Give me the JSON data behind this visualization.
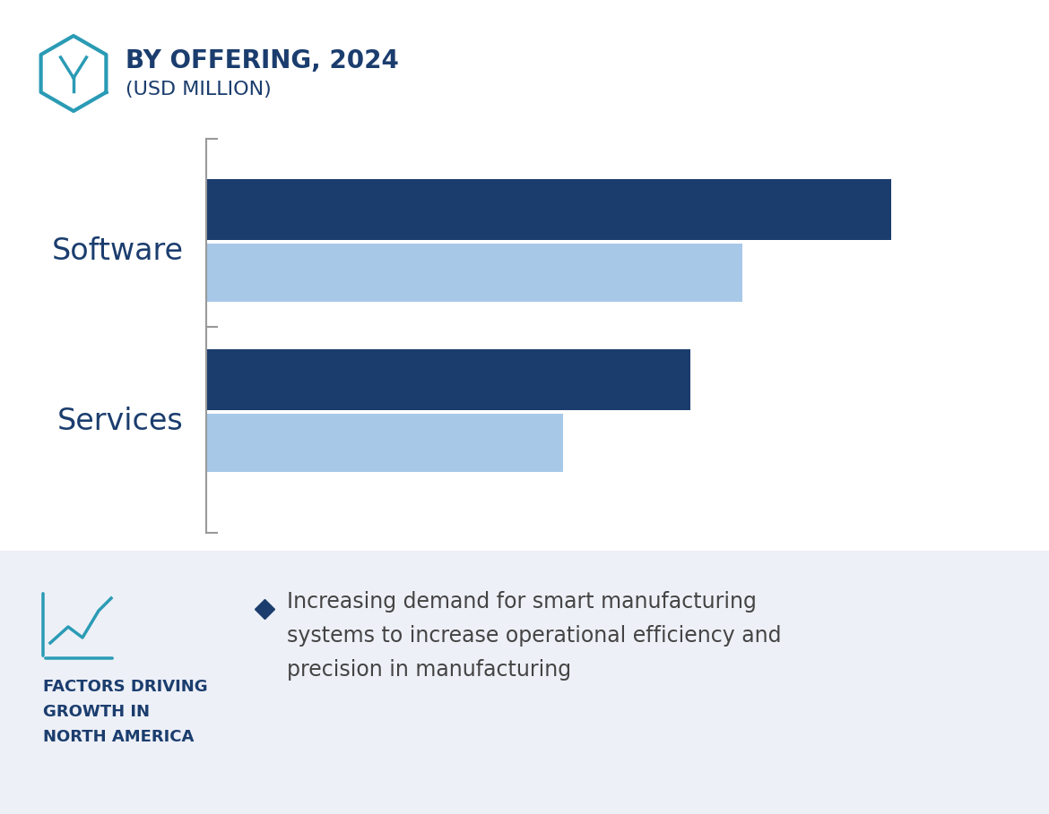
{
  "title_line1": "BY OFFERING, 2024",
  "title_line2": "(USD MILLION)",
  "categories": [
    "Software",
    "Services"
  ],
  "dark_blue_values": [
    0.92,
    0.65
  ],
  "light_blue_values": [
    0.72,
    0.48
  ],
  "dark_blue_color": "#1b3d6e",
  "light_blue_color": "#a8c8e8",
  "background_color": "#ffffff",
  "bottom_panel_color": "#edf0f7",
  "title_color": "#1b3d6e",
  "label_color": "#1b3d6e",
  "factors_title": "FACTORS DRIVING\nGROWTH IN\nNORTH AMERICA",
  "factors_color": "#1b3d6e",
  "bullet_color": "#1b3d6e",
  "bullet_text_line1": "Increasing demand for smart manufacturing",
  "bullet_text_line2": "systems to increase operational efficiency and",
  "bullet_text_line3": "precision in manufacturing",
  "bullet_text_color": "#444444",
  "icon_color": "#2a9bb5",
  "axis_line_color": "#999999"
}
